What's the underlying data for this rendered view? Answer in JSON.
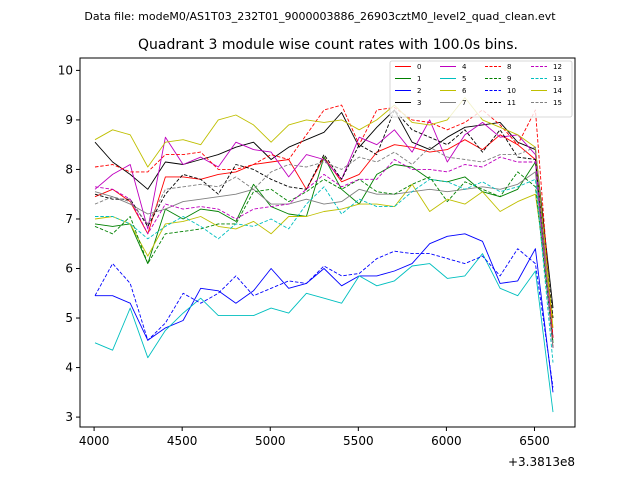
{
  "chart_data": {
    "type": "line",
    "suptitle": "Data file: modeM0/AS1T03_232T01_9000003886_26903cztM0_level2_quad_clean.evt",
    "title": "Quadrant 3 module wise count rates with 100.0s bins.",
    "xlabel": "",
    "ylabel": "",
    "x_offset_label": "+3.3813e8",
    "xlim": [
      3920,
      6730
    ],
    "ylim": [
      2.8,
      10.25
    ],
    "x_ticks": [
      "4000",
      "4500",
      "5000",
      "5500",
      "6000",
      "6500"
    ],
    "y_ticks": [
      "3",
      "4",
      "5",
      "6",
      "7",
      "8",
      "9",
      "10"
    ],
    "legend_position": "top-right",
    "x": [
      4005,
      4105,
      4205,
      4305,
      4405,
      4505,
      4605,
      4705,
      4805,
      4905,
      5005,
      5105,
      5205,
      5305,
      5405,
      5505,
      5605,
      5705,
      5805,
      5905,
      6005,
      6105,
      6205,
      6305,
      6405,
      6505,
      6605
    ],
    "series": [
      {
        "name": "0",
        "color": "#ff0000",
        "dashed": false,
        "values": [
          7.45,
          7.6,
          7.35,
          6.7,
          7.85,
          7.85,
          7.8,
          7.9,
          7.95,
          8.1,
          8.15,
          8.2,
          7.6,
          8.25,
          7.75,
          7.9,
          8.35,
          8.5,
          8.45,
          8.35,
          8.4,
          8.6,
          8.4,
          8.7,
          8.5,
          8.2,
          4.4
        ]
      },
      {
        "name": "1",
        "color": "#008000",
        "dashed": false,
        "values": [
          6.9,
          6.85,
          6.9,
          6.1,
          7.2,
          7.0,
          7.2,
          7.15,
          6.95,
          7.7,
          7.25,
          7.1,
          7.05,
          8.25,
          7.6,
          7.3,
          7.9,
          8.1,
          8.05,
          7.8,
          7.75,
          7.85,
          7.55,
          7.45,
          7.6,
          8.15,
          4.5
        ]
      },
      {
        "name": "2",
        "color": "#0000ff",
        "dashed": false,
        "values": [
          5.45,
          5.45,
          5.3,
          4.55,
          4.8,
          4.95,
          5.6,
          5.55,
          5.3,
          5.55,
          6.0,
          5.6,
          5.7,
          6.0,
          5.65,
          5.85,
          5.85,
          5.95,
          6.1,
          6.5,
          6.65,
          6.7,
          6.55,
          5.7,
          5.75,
          6.4,
          3.5
        ]
      },
      {
        "name": "3",
        "color": "#000000",
        "dashed": false,
        "values": [
          8.55,
          8.15,
          7.9,
          7.6,
          8.15,
          8.1,
          8.2,
          8.3,
          8.45,
          8.55,
          8.2,
          8.45,
          8.6,
          8.75,
          9.15,
          8.45,
          8.85,
          9.2,
          8.55,
          8.4,
          8.65,
          8.85,
          8.9,
          8.95,
          8.55,
          8.4,
          5.2
        ]
      },
      {
        "name": "4",
        "color": "#bf00bf",
        "dashed": false,
        "values": [
          7.6,
          7.9,
          8.1,
          6.8,
          8.65,
          8.1,
          8.25,
          8.05,
          8.55,
          8.4,
          8.35,
          7.85,
          8.3,
          8.2,
          7.8,
          8.65,
          8.5,
          8.8,
          8.35,
          9.0,
          8.15,
          8.7,
          8.95,
          8.65,
          8.7,
          8.3,
          4.6
        ]
      },
      {
        "name": "5",
        "color": "#00bfbf",
        "dashed": false,
        "values": [
          4.5,
          4.35,
          5.2,
          4.2,
          4.75,
          5.1,
          5.4,
          5.05,
          5.05,
          5.05,
          5.2,
          5.1,
          5.5,
          5.4,
          5.3,
          5.85,
          5.65,
          5.75,
          6.05,
          6.1,
          5.8,
          5.85,
          6.3,
          5.6,
          5.45,
          5.95,
          3.1
        ]
      },
      {
        "name": "6",
        "color": "#bfbf00",
        "dashed": false,
        "values": [
          7.0,
          7.05,
          6.9,
          6.25,
          6.9,
          6.95,
          7.05,
          6.85,
          6.8,
          6.95,
          6.7,
          7.05,
          7.05,
          7.15,
          7.2,
          7.3,
          7.3,
          7.25,
          7.7,
          7.15,
          7.4,
          7.3,
          7.55,
          7.15,
          7.35,
          7.5,
          5.0
        ]
      },
      {
        "name": "7",
        "color": "#808080",
        "dashed": false,
        "values": [
          7.55,
          7.45,
          7.3,
          7.1,
          7.2,
          7.35,
          7.4,
          7.45,
          7.5,
          7.6,
          7.3,
          7.3,
          7.4,
          7.3,
          7.35,
          7.6,
          7.5,
          7.5,
          7.55,
          7.6,
          7.55,
          7.6,
          7.65,
          7.6,
          7.7,
          7.95,
          4.4
        ]
      },
      {
        "name": "8",
        "color": "#ff0000",
        "dashed": true,
        "values": [
          8.05,
          8.1,
          7.95,
          7.95,
          8.3,
          8.3,
          8.35,
          8.0,
          8.0,
          8.1,
          8.3,
          8.2,
          8.7,
          9.2,
          9.3,
          8.5,
          9.2,
          9.25,
          9.0,
          8.95,
          8.8,
          8.95,
          9.2,
          8.9,
          8.5,
          9.2,
          4.6
        ]
      },
      {
        "name": "9",
        "color": "#008000",
        "dashed": true,
        "values": [
          6.85,
          6.7,
          7.05,
          6.1,
          6.7,
          6.75,
          6.8,
          6.9,
          6.9,
          7.55,
          7.6,
          7.35,
          7.55,
          7.8,
          7.6,
          7.8,
          7.55,
          7.5,
          7.7,
          7.85,
          7.35,
          7.75,
          7.6,
          7.45,
          7.95,
          7.65,
          4.5
        ]
      },
      {
        "name": "10",
        "color": "#0000ff",
        "dashed": true,
        "values": [
          5.45,
          6.1,
          5.7,
          4.55,
          4.9,
          5.5,
          5.3,
          5.5,
          5.85,
          5.45,
          5.6,
          5.75,
          5.7,
          6.05,
          5.85,
          5.9,
          6.2,
          6.35,
          6.3,
          6.3,
          6.2,
          6.1,
          6.25,
          5.85,
          6.4,
          6.1,
          3.6
        ]
      },
      {
        "name": "11",
        "color": "#000000",
        "dashed": true,
        "values": [
          7.5,
          7.4,
          7.4,
          6.85,
          7.5,
          7.9,
          7.8,
          7.5,
          8.1,
          8.0,
          7.8,
          7.65,
          7.6,
          8.3,
          7.8,
          8.5,
          8.3,
          9.2,
          8.8,
          8.65,
          8.5,
          8.8,
          8.35,
          8.8,
          8.25,
          8.2,
          5.0
        ]
      },
      {
        "name": "12",
        "color": "#bf00bf",
        "dashed": true,
        "values": [
          7.65,
          7.6,
          7.4,
          6.7,
          7.3,
          7.2,
          7.25,
          7.2,
          7.0,
          7.2,
          7.25,
          7.3,
          7.6,
          7.9,
          7.65,
          7.8,
          7.8,
          8.2,
          8.0,
          8.0,
          7.95,
          8.1,
          8.05,
          8.25,
          8.15,
          8.15,
          4.4
        ]
      },
      {
        "name": "13",
        "color": "#00bfbf",
        "dashed": true,
        "values": [
          7.05,
          7.05,
          6.9,
          6.6,
          6.85,
          7.05,
          6.85,
          6.6,
          6.9,
          6.85,
          7.0,
          6.8,
          7.3,
          7.65,
          7.1,
          7.4,
          7.25,
          7.25,
          7.55,
          7.8,
          7.75,
          7.6,
          7.75,
          7.55,
          7.65,
          7.8,
          4.1
        ]
      },
      {
        "name": "14",
        "color": "#bfbf00",
        "dashed": false,
        "values": [
          8.6,
          8.8,
          8.7,
          8.05,
          8.55,
          8.6,
          8.5,
          9.0,
          9.1,
          8.9,
          8.55,
          8.9,
          9.0,
          8.95,
          9.0,
          8.8,
          9.0,
          9.3,
          8.95,
          8.9,
          9.0,
          9.45,
          9.0,
          8.85,
          8.7,
          8.45,
          4.8
        ]
      },
      {
        "name": "15",
        "color": "#808080",
        "dashed": true,
        "values": [
          7.3,
          7.45,
          7.35,
          6.9,
          7.6,
          7.65,
          7.7,
          7.65,
          7.85,
          7.6,
          7.95,
          8.1,
          8.05,
          8.15,
          8.0,
          8.25,
          8.15,
          8.35,
          8.1,
          8.45,
          8.25,
          8.2,
          8.15,
          8.3,
          8.3,
          8.45,
          4.4
        ]
      }
    ]
  }
}
